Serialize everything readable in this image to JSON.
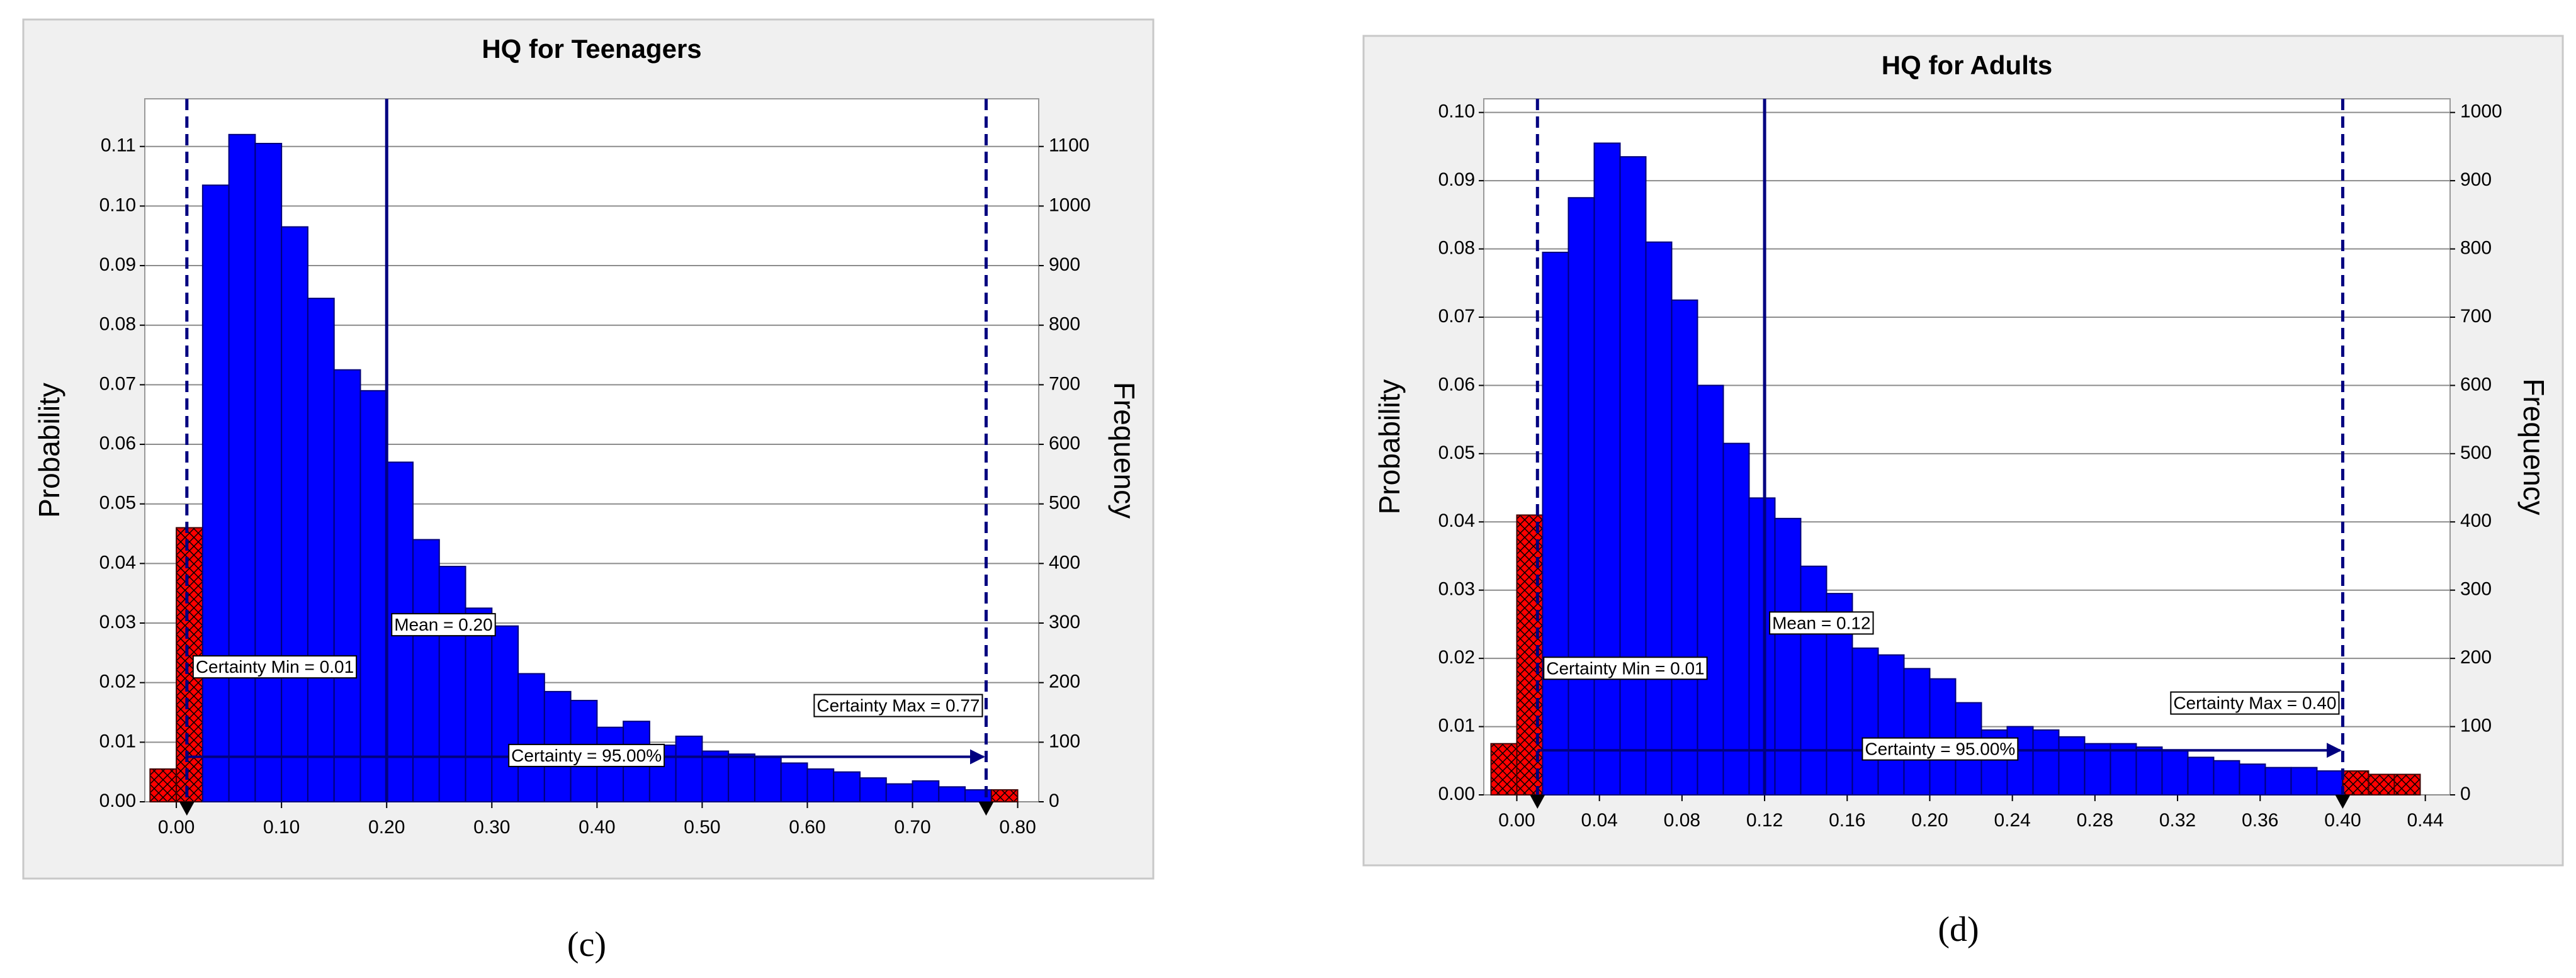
{
  "chart_data": [
    {
      "type": "histogram",
      "panel_label": "(c)",
      "title": "HQ for Teenagers",
      "y_label": "Probability",
      "y2_label": "Frequency",
      "bins": [
        -0.025,
        0,
        0.025,
        0.05,
        0.075,
        0.1,
        0.125,
        0.15,
        0.175,
        0.2,
        0.225,
        0.25,
        0.275,
        0.3,
        0.325,
        0.35,
        0.375,
        0.4,
        0.425,
        0.45,
        0.475,
        0.5,
        0.525,
        0.55,
        0.575,
        0.6,
        0.625,
        0.65,
        0.675,
        0.7,
        0.725,
        0.75,
        0.775,
        0.8
      ],
      "values": [
        0.0055,
        0.046,
        0.1035,
        0.112,
        0.1105,
        0.0965,
        0.0845,
        0.0725,
        0.069,
        0.057,
        0.044,
        0.0395,
        0.0325,
        0.0295,
        0.0215,
        0.0185,
        0.017,
        0.0125,
        0.0135,
        0.0095,
        0.011,
        0.0085,
        0.008,
        0.0075,
        0.0065,
        0.0055,
        0.005,
        0.004,
        0.003,
        0.0035,
        0.0025,
        0.002,
        0.002
      ],
      "color": "#0000ff",
      "outside_color": "#ff0000",
      "xlim": [
        -0.03,
        0.82
      ],
      "xticks": [
        {
          "value": 0,
          "label": "0.00"
        },
        {
          "value": 0.1,
          "label": "0.10"
        },
        {
          "value": 0.2,
          "label": "0.20"
        },
        {
          "value": 0.3,
          "label": "0.30"
        },
        {
          "value": 0.4,
          "label": "0.40"
        },
        {
          "value": 0.5,
          "label": "0.50"
        },
        {
          "value": 0.6,
          "label": "0.60"
        },
        {
          "value": 0.7,
          "label": "0.70"
        },
        {
          "value": 0.8,
          "label": "0.80"
        }
      ],
      "ylim": [
        0,
        0.118
      ],
      "yticks": [
        {
          "value": 0,
          "label": "0.00"
        },
        {
          "value": 0.01,
          "label": "0.01"
        },
        {
          "value": 0.02,
          "label": "0.02"
        },
        {
          "value": 0.03,
          "label": "0.03"
        },
        {
          "value": 0.04,
          "label": "0.04"
        },
        {
          "value": 0.05,
          "label": "0.05"
        },
        {
          "value": 0.06,
          "label": "0.06"
        },
        {
          "value": 0.07,
          "label": "0.07"
        },
        {
          "value": 0.08,
          "label": "0.08"
        },
        {
          "value": 0.09,
          "label": "0.09"
        },
        {
          "value": 0.1,
          "label": "0.10"
        },
        {
          "value": 0.11,
          "label": "0.11"
        }
      ],
      "y2lim": [
        0,
        1180
      ],
      "y2ticks": [
        0,
        100,
        200,
        300,
        400,
        500,
        600,
        700,
        800,
        900,
        1000,
        1100
      ],
      "grid": true,
      "certainty_min": {
        "value": 0.01,
        "label": "Certainty Min = 0.01"
      },
      "certainty_max": {
        "value": 0.77,
        "label": "Certainty Max = 0.77"
      },
      "mean": {
        "value": 0.2,
        "label": "Mean = 0.20"
      },
      "certainty_label": "Certainty = 95.00%"
    },
    {
      "type": "histogram",
      "panel_label": "(d)",
      "title": "HQ for Adults",
      "y_label": "Probability",
      "y2_label": "Frequency",
      "bins": [
        -0.0125,
        0,
        0.0125,
        0.025,
        0.0375,
        0.05,
        0.0625,
        0.075,
        0.0875,
        0.1,
        0.1125,
        0.125,
        0.1375,
        0.15,
        0.1625,
        0.175,
        0.1875,
        0.2,
        0.2125,
        0.225,
        0.2375,
        0.25,
        0.2625,
        0.275,
        0.2875,
        0.3,
        0.3125,
        0.325,
        0.3375,
        0.35,
        0.3625,
        0.375,
        0.3875,
        0.4,
        0.4125,
        0.425,
        0.4375
      ],
      "values": [
        0.0075,
        0.041,
        0.0795,
        0.0875,
        0.0955,
        0.0935,
        0.081,
        0.0725,
        0.06,
        0.0515,
        0.0435,
        0.0405,
        0.0335,
        0.0295,
        0.0215,
        0.0205,
        0.0185,
        0.017,
        0.0135,
        0.0095,
        0.01,
        0.0095,
        0.0085,
        0.0075,
        0.0075,
        0.007,
        0.0065,
        0.0055,
        0.005,
        0.0045,
        0.004,
        0.004,
        0.0035,
        0.0035,
        0.003,
        0.003
      ],
      "color": "#0000ff",
      "outside_color": "#ff0000",
      "xlim": [
        -0.016,
        0.452
      ],
      "xticks": [
        {
          "value": 0,
          "label": "0.00"
        },
        {
          "value": 0.04,
          "label": "0.04"
        },
        {
          "value": 0.08,
          "label": "0.08"
        },
        {
          "value": 0.12,
          "label": "0.12"
        },
        {
          "value": 0.16,
          "label": "0.16"
        },
        {
          "value": 0.2,
          "label": "0.20"
        },
        {
          "value": 0.24,
          "label": "0.24"
        },
        {
          "value": 0.28,
          "label": "0.28"
        },
        {
          "value": 0.32,
          "label": "0.32"
        },
        {
          "value": 0.36,
          "label": "0.36"
        },
        {
          "value": 0.4,
          "label": "0.40"
        },
        {
          "value": 0.44,
          "label": "0.44"
        }
      ],
      "ylim": [
        0,
        0.102
      ],
      "yticks": [
        {
          "value": 0,
          "label": "0.00"
        },
        {
          "value": 0.01,
          "label": "0.01"
        },
        {
          "value": 0.02,
          "label": "0.02"
        },
        {
          "value": 0.03,
          "label": "0.03"
        },
        {
          "value": 0.04,
          "label": "0.04"
        },
        {
          "value": 0.05,
          "label": "0.05"
        },
        {
          "value": 0.06,
          "label": "0.06"
        },
        {
          "value": 0.07,
          "label": "0.07"
        },
        {
          "value": 0.08,
          "label": "0.08"
        },
        {
          "value": 0.09,
          "label": "0.09"
        },
        {
          "value": 0.1,
          "label": "0.10"
        }
      ],
      "y2lim": [
        0,
        1020
      ],
      "y2ticks": [
        0,
        100,
        200,
        300,
        400,
        500,
        600,
        700,
        800,
        900,
        1000
      ],
      "grid": true,
      "certainty_min": {
        "value": 0.01,
        "label": "Certainty Min = 0.01"
      },
      "certainty_max": {
        "value": 0.4,
        "label": "Certainty Max = 0.40"
      },
      "mean": {
        "value": 0.12,
        "label": "Mean = 0.12"
      },
      "certainty_label": "Certainty = 95.00%"
    }
  ]
}
